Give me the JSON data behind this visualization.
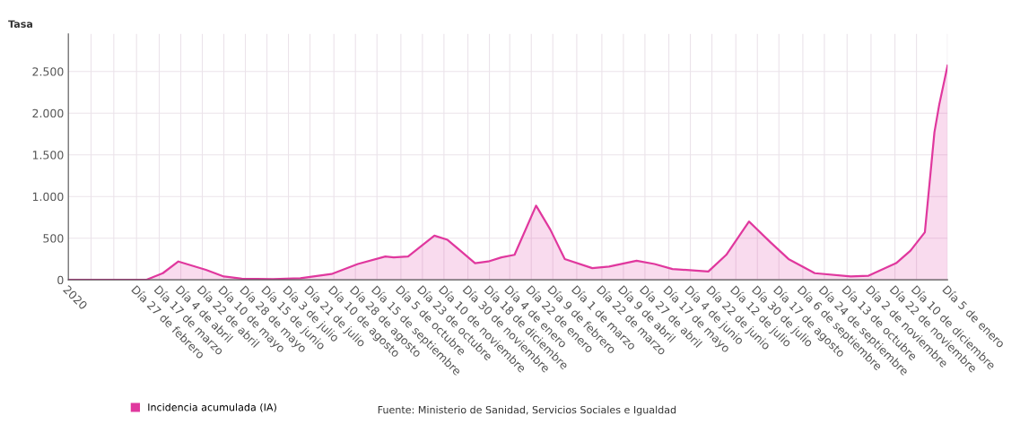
{
  "chart_data": {
    "type": "area",
    "ylabel": "Tasa",
    "legend": "bottom",
    "grid": true,
    "annotations": [
      "Fuente: Ministerio de Sanidad, Servicios Sociales e Igualdad"
    ],
    "xlim": [
      "2020-01-01",
      "2022-01-05"
    ],
    "ylim": [
      0,
      2950
    ],
    "yticks": [
      0,
      {
        "value": 500,
        "label": "500"
      },
      {
        "value": 1000,
        "label": "1.000"
      },
      {
        "value": 1500,
        "label": "1.500"
      },
      {
        "value": 2000,
        "label": "2.000"
      },
      {
        "value": 2500,
        "label": "2.500"
      }
    ],
    "xticks": [
      {
        "value": "2020-01-01",
        "label": "2020"
      },
      {
        "value": "2020-01-20",
        "label": null
      },
      {
        "value": "2020-02-08",
        "label": null
      },
      {
        "value": "2020-02-27",
        "label": "Día 27 de febrero"
      },
      {
        "value": "2020-03-17",
        "label": "Día 17 de marzo"
      },
      {
        "value": "2020-04-04",
        "label": "Día 4 de abril"
      },
      {
        "value": "2020-04-22",
        "label": "Día 22 de abril"
      },
      {
        "value": "2020-05-10",
        "label": "Día 10 de mayo"
      },
      {
        "value": "2020-05-28",
        "label": "Día 28 de mayo"
      },
      {
        "value": "2020-06-15",
        "label": "Día 15 de junio"
      },
      {
        "value": "2020-07-03",
        "label": "Día 3 de julio"
      },
      {
        "value": "2020-07-21",
        "label": "Día 21 de julio"
      },
      {
        "value": "2020-08-10",
        "label": "Día 10 de agosto"
      },
      {
        "value": "2020-08-28",
        "label": "Día 28 de agosto"
      },
      {
        "value": "2020-09-15",
        "label": "Día 15 de septiembre"
      },
      {
        "value": "2020-10-05",
        "label": "Día 5 de octubre"
      },
      {
        "value": "2020-10-23",
        "label": "Día 23 de octubre"
      },
      {
        "value": "2020-11-10",
        "label": "Día 10 de noviembre"
      },
      {
        "value": "2020-11-30",
        "label": "Día 30 de noviembre"
      },
      {
        "value": "2020-12-18",
        "label": "Día 18 de diciembre"
      },
      {
        "value": "2021-01-04",
        "label": "Día 4 de enero"
      },
      {
        "value": "2021-01-22",
        "label": "Día 22 de enero"
      },
      {
        "value": "2021-02-09",
        "label": "Día 9 de febrero"
      },
      {
        "value": "2021-03-01",
        "label": "Día 1 de marzo"
      },
      {
        "value": "2021-03-22",
        "label": "Día 22 de marzo"
      },
      {
        "value": "2021-04-09",
        "label": "Día 9 de abril"
      },
      {
        "value": "2021-04-27",
        "label": "Día 27 de abril"
      },
      {
        "value": "2021-05-17",
        "label": "Día 17 de mayo"
      },
      {
        "value": "2021-06-04",
        "label": "Día 4 de junio"
      },
      {
        "value": "2021-06-22",
        "label": "Día 22 de junio"
      },
      {
        "value": "2021-07-12",
        "label": "Día 12 de julio"
      },
      {
        "value": "2021-07-30",
        "label": "Día 30 de julio"
      },
      {
        "value": "2021-08-17",
        "label": "Día 17 de agosto"
      },
      {
        "value": "2021-09-06",
        "label": "Día 6 de septiembre"
      },
      {
        "value": "2021-09-24",
        "label": "Día 24 de septiembre"
      },
      {
        "value": "2021-10-13",
        "label": "Día 13 de octubre"
      },
      {
        "value": "2021-11-02",
        "label": "Día 2 de noviembre"
      },
      {
        "value": "2021-11-22",
        "label": "Día 22 de noviembre"
      },
      {
        "value": "2021-12-10",
        "label": "Día 10 de diciembre"
      },
      {
        "value": "2022-01-05",
        "label": "Día 5 de enero"
      }
    ],
    "series": [
      {
        "name": "Incidencia acumulada (IA)",
        "color": "#e0389e",
        "x": [
          "2020-01-01",
          "2020-03-06",
          "2020-03-20",
          "2020-04-02",
          "2020-04-25",
          "2020-05-10",
          "2020-05-25",
          "2020-06-20",
          "2020-07-13",
          "2020-08-08",
          "2020-08-30",
          "2020-09-22",
          "2020-09-29",
          "2020-10-11",
          "2020-11-02",
          "2020-11-13",
          "2020-12-06",
          "2020-12-17",
          "2020-12-28",
          "2021-01-08",
          "2021-01-26",
          "2021-02-07",
          "2021-02-19",
          "2021-03-14",
          "2021-03-28",
          "2021-04-20",
          "2021-05-05",
          "2021-05-20",
          "2021-06-19",
          "2021-07-04",
          "2021-07-23",
          "2021-08-10",
          "2021-08-25",
          "2021-09-16",
          "2021-10-16",
          "2021-10-31",
          "2021-11-23",
          "2021-12-05",
          "2021-12-17",
          "2021-12-25",
          "2021-12-29",
          "2022-01-05"
        ],
        "values": [
          0,
          0,
          80,
          220,
          120,
          40,
          15,
          10,
          20,
          70,
          190,
          280,
          270,
          280,
          530,
          480,
          200,
          220,
          270,
          300,
          890,
          600,
          250,
          140,
          160,
          230,
          190,
          130,
          100,
          300,
          700,
          450,
          250,
          80,
          40,
          50,
          200,
          350,
          570,
          1770,
          2100,
          2570
        ]
      }
    ]
  }
}
